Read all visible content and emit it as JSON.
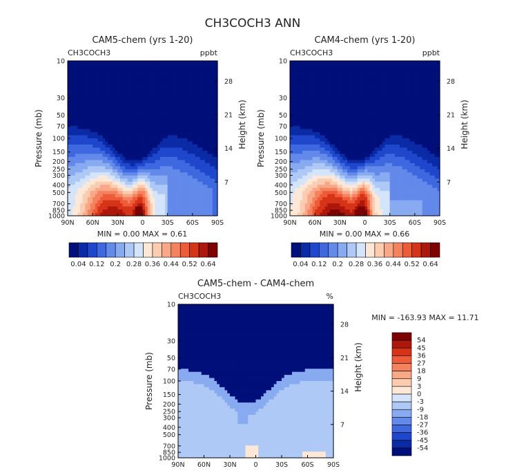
{
  "main_title": "CH3COCH3 ANN",
  "palette_pos": [
    "#000f7a",
    "#0a2aa6",
    "#1f47cc",
    "#3e68e0",
    "#6389ea",
    "#88aaf0",
    "#aec9f6",
    "#d3e4fb",
    "#fde8d7",
    "#fbccb0",
    "#f8a886",
    "#f5825f",
    "#ee5b39",
    "#d63418",
    "#ae170b",
    "#7d0303"
  ],
  "palette_diff": [
    "#000f7a",
    "#0a2aa6",
    "#1f47cc",
    "#3e68e0",
    "#6389ea",
    "#88aaf0",
    "#aec9f6",
    "#d3e4fb",
    "#fde8d7",
    "#fbccb0",
    "#f8a886",
    "#f5825f",
    "#ee5b39",
    "#d63418",
    "#ae170b",
    "#7d0303"
  ],
  "chart_data": [
    {
      "type": "heatmap",
      "title": "CAM5-chem (yrs 1-20)",
      "variable": "CH3COCH3",
      "units": "ppbt",
      "ylabel": "Pressure (mb)",
      "y2label": "Height (km)",
      "xticks": [
        "90N",
        "60N",
        "30N",
        "0",
        "30S",
        "60S",
        "90S"
      ],
      "yticks": [
        "10",
        "30",
        "50",
        "70",
        "100",
        "150",
        "200",
        "250",
        "300",
        "400",
        "500",
        "700",
        "850",
        "1000"
      ],
      "y2ticks": [
        "28",
        "21",
        "14",
        "7"
      ],
      "min_text": "MIN =    0.00   MAX =    0.61",
      "min": 0.0,
      "max": 0.61,
      "colorbar_labels": [
        "0.04",
        "0.12",
        "0.2",
        "0.28",
        "0.36",
        "0.44",
        "0.52",
        "0.64"
      ]
    },
    {
      "type": "heatmap",
      "title": "CAM4-chem (yrs 1-20)",
      "variable": "CH3COCH3",
      "units": "ppbt",
      "ylabel": "Pressure (mb)",
      "y2label": "Height (km)",
      "xticks": [
        "90N",
        "60N",
        "30N",
        "0",
        "30S",
        "60S",
        "90S"
      ],
      "yticks": [
        "10",
        "30",
        "50",
        "70",
        "100",
        "150",
        "200",
        "250",
        "300",
        "400",
        "500",
        "700",
        "850",
        "1000"
      ],
      "y2ticks": [
        "28",
        "21",
        "14",
        "7"
      ],
      "min_text": "MIN =    0.00   MAX =    0.66",
      "min": 0.0,
      "max": 0.66,
      "colorbar_labels": [
        "0.04",
        "0.12",
        "0.2",
        "0.28",
        "0.36",
        "0.44",
        "0.52",
        "0.64"
      ]
    },
    {
      "type": "heatmap",
      "title": "CAM5-chem  -  CAM4-chem",
      "variable": "CH3COCH3",
      "units": "%",
      "ylabel": "Pressure (mb)",
      "y2label": "Height (km)",
      "xticks": [
        "90N",
        "60N",
        "30N",
        "0",
        "30S",
        "60S",
        "90S"
      ],
      "yticks": [
        "10",
        "30",
        "50",
        "70",
        "100",
        "150",
        "200",
        "250",
        "300",
        "400",
        "500",
        "700",
        "850",
        "1000"
      ],
      "y2ticks": [
        "28",
        "21",
        "14",
        "7"
      ],
      "min_text": "MIN =  -163.93   MAX =    11.71",
      "min": -163.93,
      "max": 11.71,
      "colorbar_labels": [
        "54",
        "45",
        "36",
        "27",
        "18",
        "9",
        "3",
        "0",
        "-3",
        "-9",
        "-18",
        "-27",
        "-36",
        "-45",
        "-54"
      ]
    }
  ]
}
